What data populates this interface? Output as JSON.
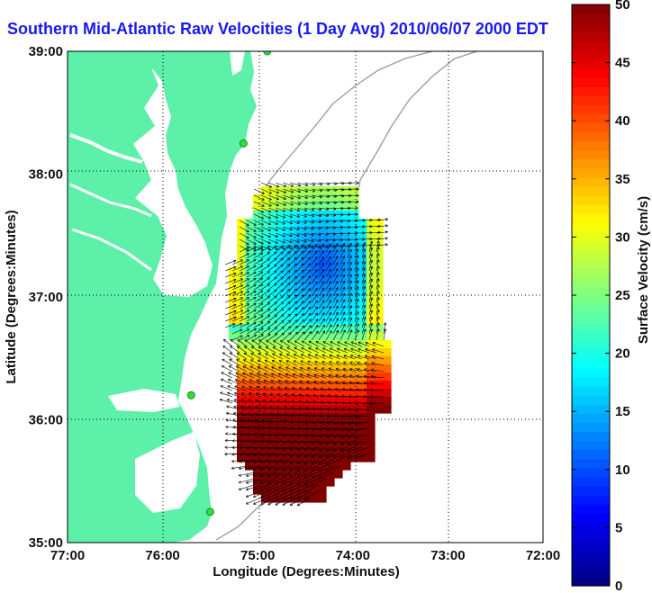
{
  "title": "Southern Mid-Atlantic Raw Velocities (1 Day Avg) 2010/06/07 2000 EDT",
  "xlabel": "Longitude (Degrees:Minutes)",
  "ylabel": "Latitude (Degrees:Minutes)",
  "colorbar_label": "Surface Velocity (cm/s)",
  "x_ticks": [
    "77:00",
    "76:00",
    "75:00",
    "74:00",
    "73:00",
    "72:00"
  ],
  "y_ticks": [
    "39:00",
    "38:00",
    "37:00",
    "36:00",
    "35:00"
  ],
  "colorbar_ticks": [
    "50",
    "45",
    "40",
    "35",
    "30",
    "25",
    "20",
    "15",
    "10",
    "5",
    "0"
  ],
  "colors": {
    "land": "#5cf0a8",
    "title": "#1a1af0",
    "contour": "#999999",
    "station": "#33dd33"
  },
  "chart_data": {
    "type": "heatmap",
    "x_range": [
      -77,
      -72
    ],
    "y_range": [
      35,
      39
    ],
    "color_range": [
      0,
      50
    ],
    "colormap": "jet",
    "grid": true,
    "stations": [
      {
        "lon": -74.9,
        "lat": 39.0
      },
      {
        "lon": -75.15,
        "lat": 38.25
      },
      {
        "lon": -75.7,
        "lat": 36.2
      },
      {
        "lon": -75.5,
        "lat": 35.25
      }
    ]
  }
}
